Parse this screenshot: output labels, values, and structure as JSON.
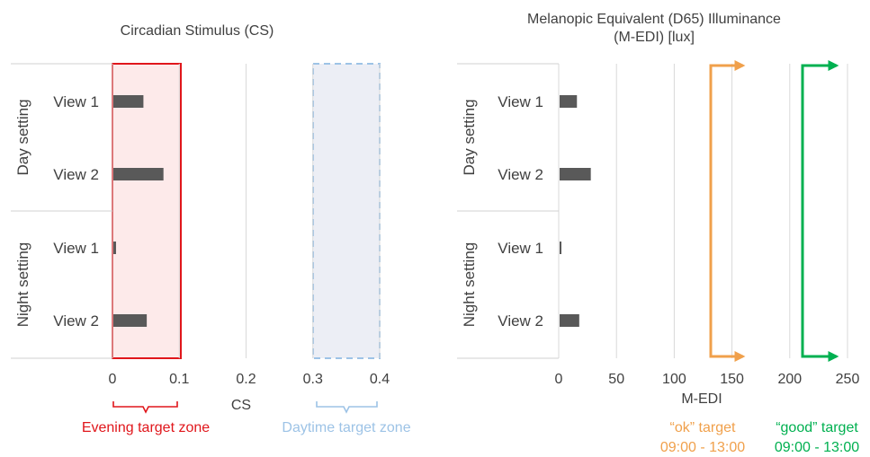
{
  "chart_data": [
    {
      "type": "bar",
      "orientation": "horizontal",
      "title": "Circadian Stimulus (CS)",
      "xlabel": "CS",
      "ylabel": "",
      "xlim": [
        0,
        0.4
      ],
      "xticks": [
        "0",
        "0.1",
        "0.2",
        "0.3",
        "0.4"
      ],
      "grid": true,
      "groups": [
        {
          "label": "Day setting",
          "categories": [
            "View 1",
            "View 2"
          ],
          "values": [
            0.045,
            0.075
          ]
        },
        {
          "label": "Night setting",
          "categories": [
            "View 1",
            "View 2"
          ],
          "values": [
            0.004,
            0.05
          ]
        }
      ],
      "bar_color": "#595959",
      "zones": [
        {
          "label": "Evening target zone",
          "range": [
            0,
            0.1
          ],
          "color": "#e0161b",
          "style": "solid"
        },
        {
          "label": "Daytime target zone",
          "range": [
            0.3,
            0.4
          ],
          "color": "#9dc3e6",
          "style": "dashed"
        }
      ]
    },
    {
      "type": "bar",
      "orientation": "horizontal",
      "title": "Melanopic Equivalent (D65) Illuminance (M-EDI) [lux]",
      "title_lines": [
        "Melanopic Equivalent (D65) Illuminance",
        "(M-EDI) [lux]"
      ],
      "xlabel": "M-EDI",
      "ylabel": "",
      "xlim": [
        0,
        250
      ],
      "xticks": [
        "0",
        "50",
        "100",
        "150",
        "200",
        "250"
      ],
      "grid": true,
      "groups": [
        {
          "label": "Day setting",
          "categories": [
            "View 1",
            "View 2"
          ],
          "values": [
            15,
            27
          ]
        },
        {
          "label": "Night setting",
          "categories": [
            "View 1",
            "View 2"
          ],
          "values": [
            1,
            17
          ]
        }
      ],
      "bar_color": "#595959",
      "targets": [
        {
          "label": "“ok” target",
          "time": "09:00 - 13:00",
          "threshold": 136,
          "color": "#f0a04b"
        },
        {
          "label": "“good” target",
          "time": "09:00 - 13:00",
          "threshold": 213,
          "color": "#00b050"
        }
      ]
    }
  ]
}
